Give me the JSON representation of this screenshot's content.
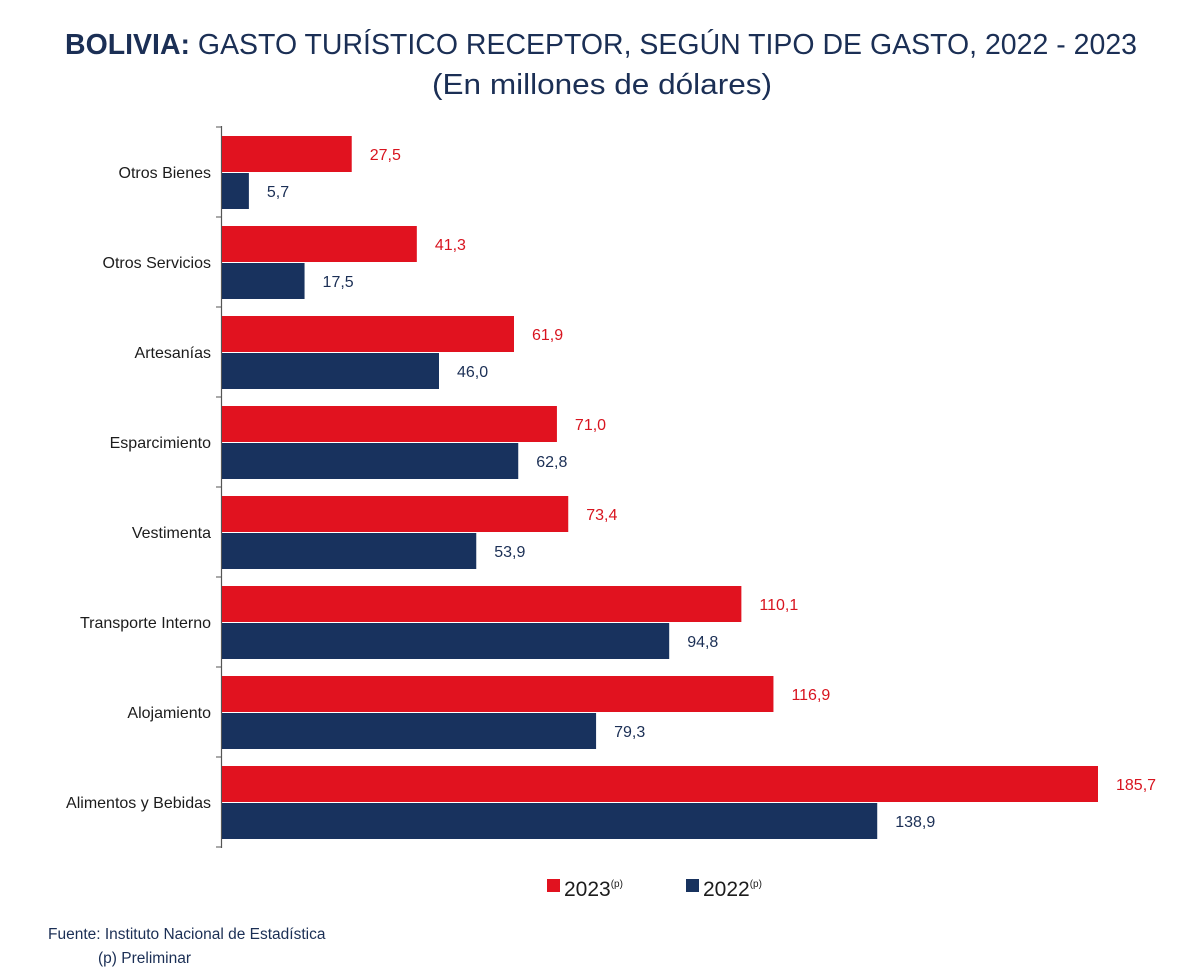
{
  "chart_data": {
    "type": "bar",
    "orientation": "horizontal",
    "title_bold": "BOLIVIA:",
    "title_rest": " GASTO TURÍSTICO RECEPTOR, SEGÚN TIPO DE GASTO, 2022 - 2023",
    "subtitle": "(En millones de dólares)",
    "categories": [
      "Otros Bienes",
      "Otros Servicios",
      "Artesanías",
      "Esparcimiento",
      "Vestimenta",
      "Transporte Interno",
      "Alojamiento",
      "Alimentos y Bebidas"
    ],
    "series": [
      {
        "name": "2023",
        "sup": "(p)",
        "color": "#e1121f",
        "values": [
          27.5,
          41.3,
          61.9,
          71.0,
          73.4,
          110.1,
          116.9,
          185.7
        ],
        "labels": [
          "27,5",
          "41,3",
          "61,9",
          "71,0",
          "73,4",
          "110,1",
          "116,9",
          "185,7"
        ]
      },
      {
        "name": "2022",
        "sup": "(p)",
        "color": "#18325e",
        "values": [
          5.7,
          17.5,
          46.0,
          62.8,
          53.9,
          94.8,
          79.3,
          138.9
        ],
        "labels": [
          "5,7",
          "17,5",
          "46,0",
          "62,8",
          "53,9",
          "94,8",
          "79,3",
          "138,9"
        ]
      }
    ],
    "xlim": [
      0,
      186
    ],
    "grid": false,
    "legend_position": "bottom-center"
  },
  "footer": {
    "source": "Fuente: Instituto Nacional de Estadística",
    "note": "(p) Preliminar"
  }
}
